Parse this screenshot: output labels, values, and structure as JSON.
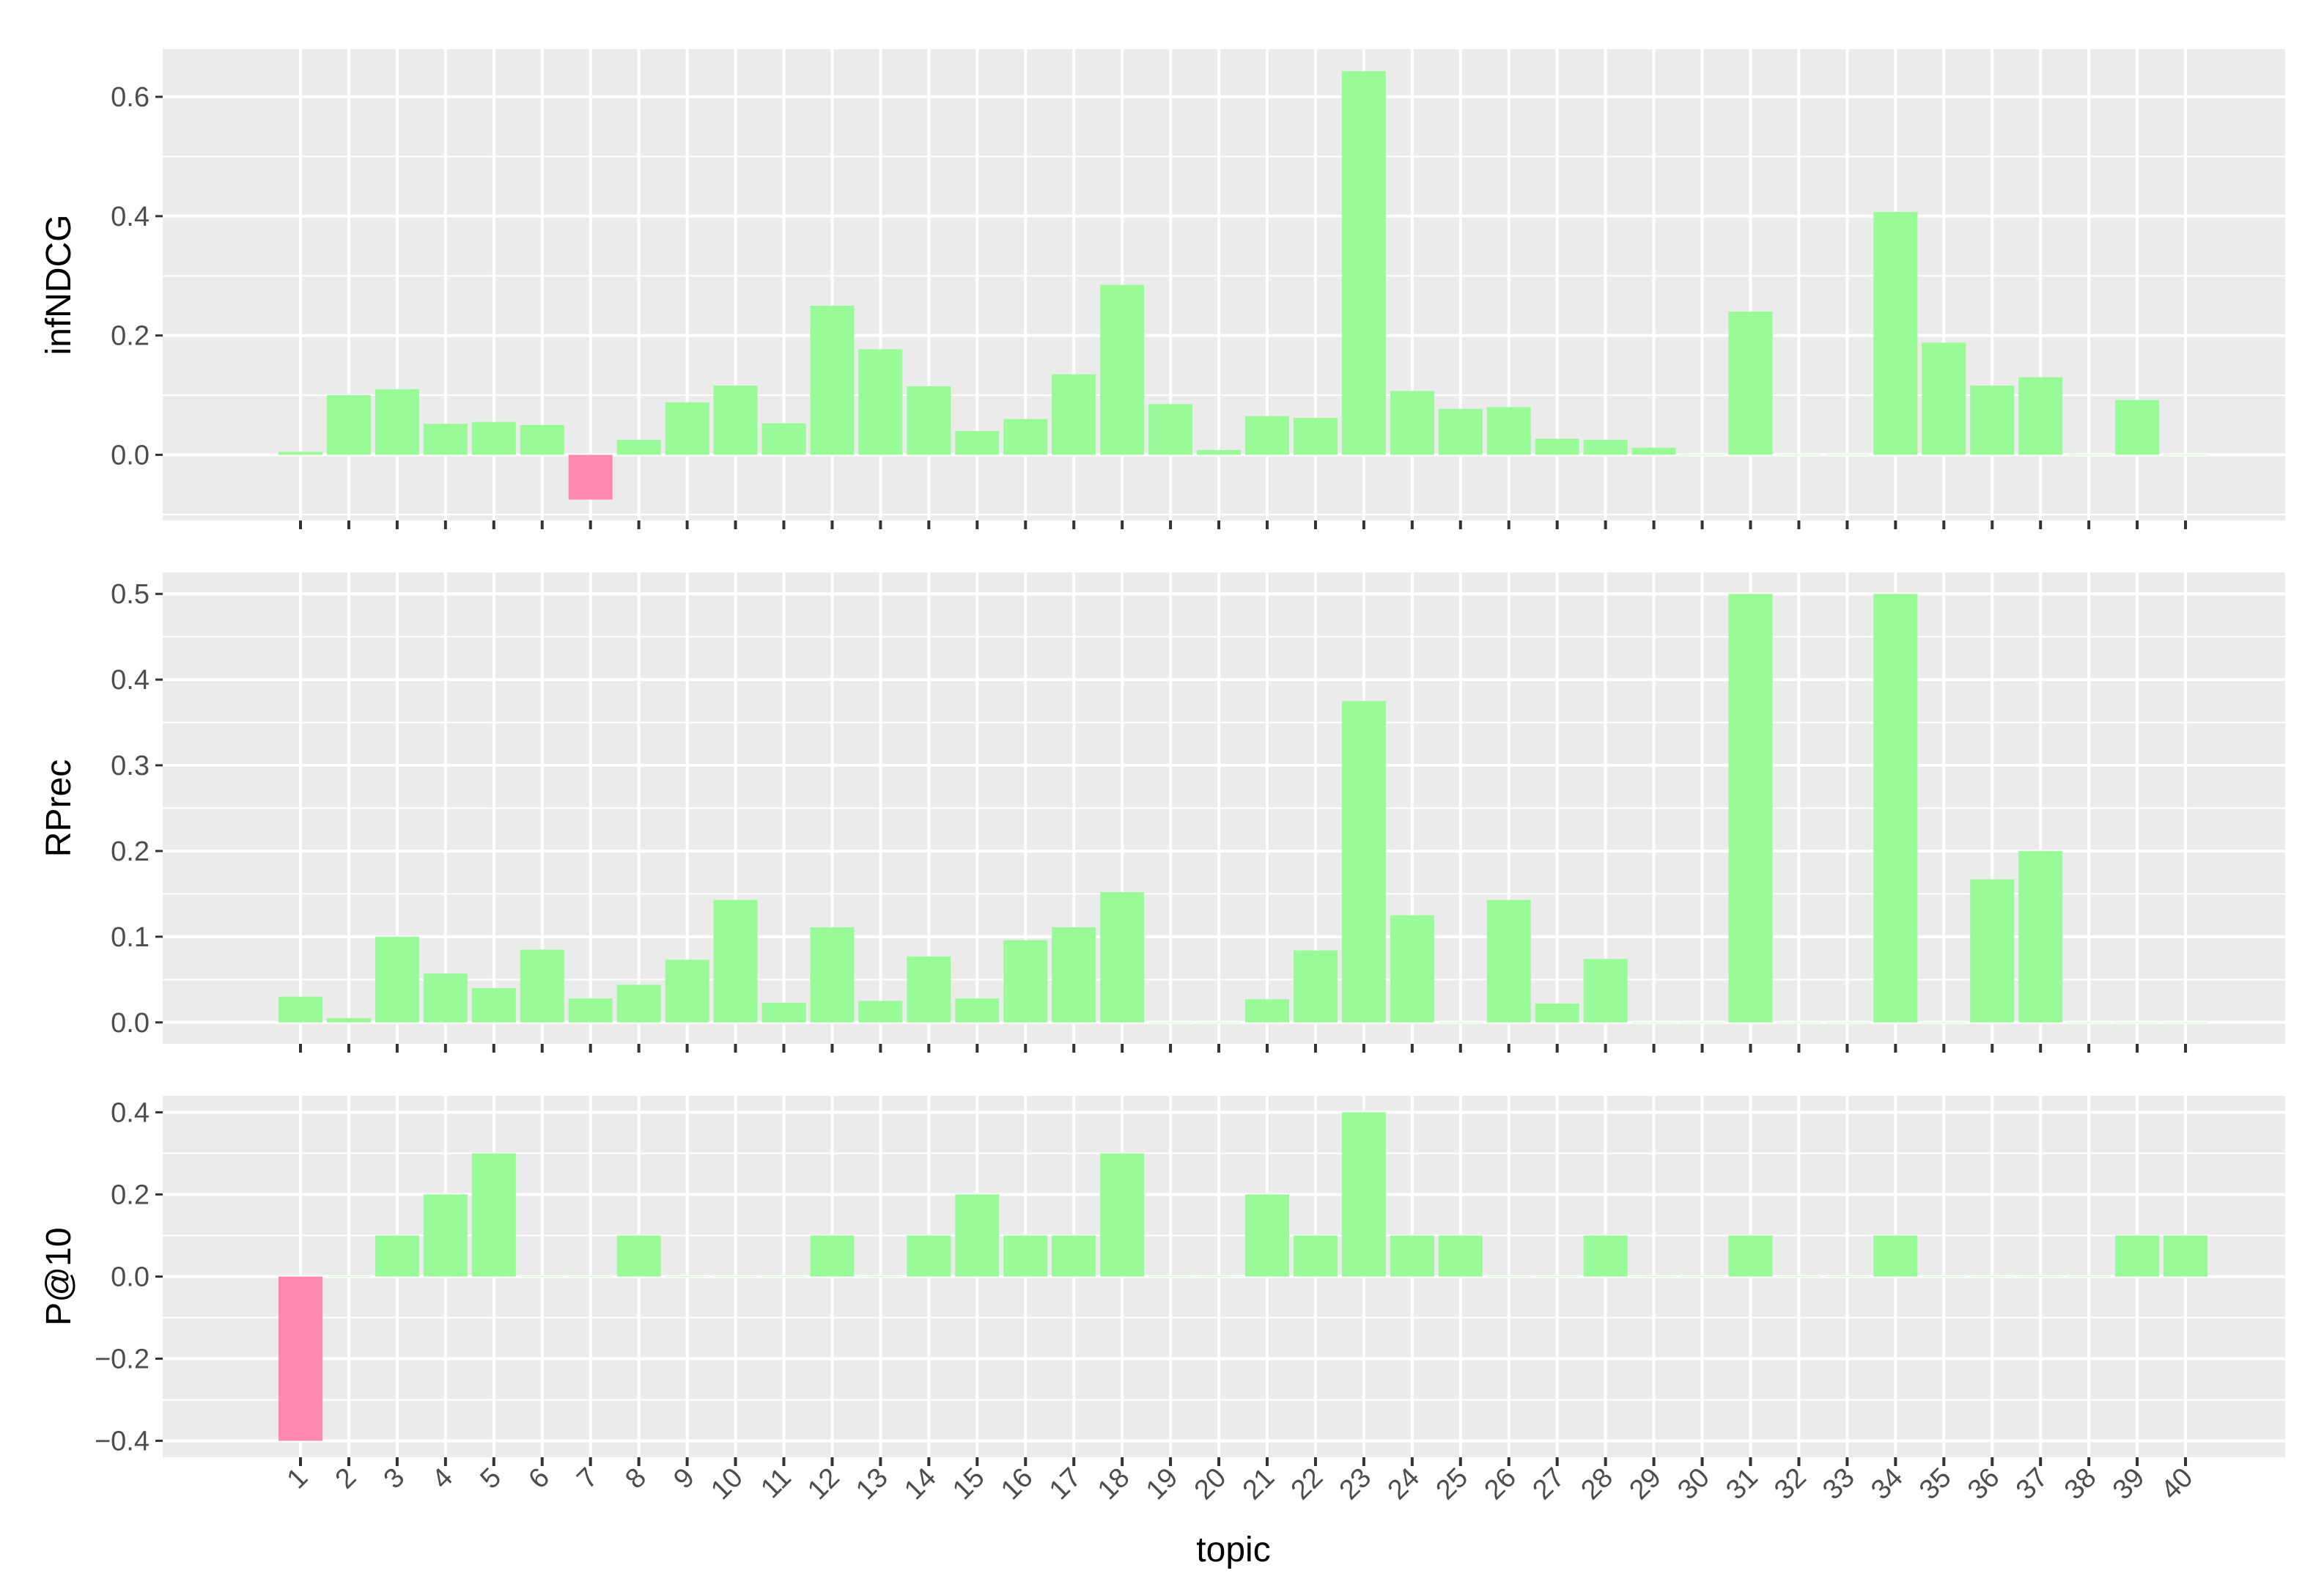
{
  "chart_data": {
    "type": "bar",
    "layout": "faceted-vertical",
    "xlabel": "topic",
    "categories": [
      "1",
      "2",
      "3",
      "4",
      "5",
      "6",
      "7",
      "8",
      "9",
      "10",
      "11",
      "12",
      "13",
      "14",
      "15",
      "16",
      "17",
      "18",
      "19",
      "20",
      "21",
      "22",
      "23",
      "24",
      "25",
      "26",
      "27",
      "28",
      "29",
      "30",
      "31",
      "32",
      "33",
      "34",
      "35",
      "36",
      "37",
      "38",
      "39",
      "40"
    ],
    "colors": {
      "positive": "#98fb98",
      "negative": "#ff88b0",
      "panel": "#ebebeb",
      "grid": "#ffffff"
    },
    "grid": true,
    "legend": "none",
    "panels": [
      {
        "ylabel": "infNDCG",
        "ylim": [
          -0.11,
          0.68
        ],
        "yticks": [
          0.0,
          0.2,
          0.4,
          0.6
        ],
        "ytick_labels": [
          "0.0",
          "0.2",
          "0.4",
          "0.6"
        ],
        "values": [
          0.005,
          0.1,
          0.11,
          0.052,
          0.055,
          0.05,
          -0.075,
          0.025,
          0.088,
          0.116,
          0.053,
          0.25,
          0.177,
          0.115,
          0.04,
          0.06,
          0.135,
          0.285,
          0.085,
          0.008,
          0.065,
          0.062,
          0.643,
          0.107,
          0.077,
          0.08,
          0.027,
          0.025,
          0.012,
          0.0,
          0.24,
          0.0,
          0.0,
          0.407,
          0.188,
          0.116,
          0.13,
          0.0,
          0.092,
          0.0
        ]
      },
      {
        "ylabel": "RPrec",
        "ylim": [
          -0.025,
          0.525
        ],
        "yticks": [
          0.0,
          0.1,
          0.2,
          0.3,
          0.4,
          0.5
        ],
        "ytick_labels": [
          "0.0",
          "0.1",
          "0.2",
          "0.3",
          "0.4",
          "0.5"
        ],
        "values": [
          0.03,
          0.005,
          0.1,
          0.057,
          0.04,
          0.085,
          0.028,
          0.044,
          0.073,
          0.143,
          0.023,
          0.111,
          0.025,
          0.077,
          0.028,
          0.096,
          0.111,
          0.152,
          0.0,
          0.0,
          0.027,
          0.084,
          0.375,
          0.125,
          0.0,
          0.143,
          0.022,
          0.074,
          0.0,
          0.0,
          0.5,
          0.0,
          0.0,
          0.5,
          0.0,
          0.167,
          0.2,
          0.0,
          0.0,
          0.0
        ]
      },
      {
        "ylabel": "P@10",
        "ylim": [
          -0.44,
          0.44
        ],
        "yticks": [
          -0.4,
          -0.2,
          0.0,
          0.2,
          0.4
        ],
        "ytick_labels": [
          "−0.4",
          "−0.2",
          "0.0",
          "0.2",
          "0.4"
        ],
        "values": [
          -0.4,
          0.0,
          0.1,
          0.2,
          0.3,
          0.0,
          0.0,
          0.1,
          0.0,
          0.0,
          0.0,
          0.1,
          0.0,
          0.1,
          0.2,
          0.1,
          0.1,
          0.3,
          0.0,
          0.0,
          0.2,
          0.1,
          0.4,
          0.1,
          0.1,
          0.0,
          0.0,
          0.1,
          0.0,
          0.0,
          0.1,
          0.0,
          0.0,
          0.1,
          0.0,
          0.0,
          0.0,
          0.0,
          0.1,
          0.1
        ]
      }
    ]
  }
}
